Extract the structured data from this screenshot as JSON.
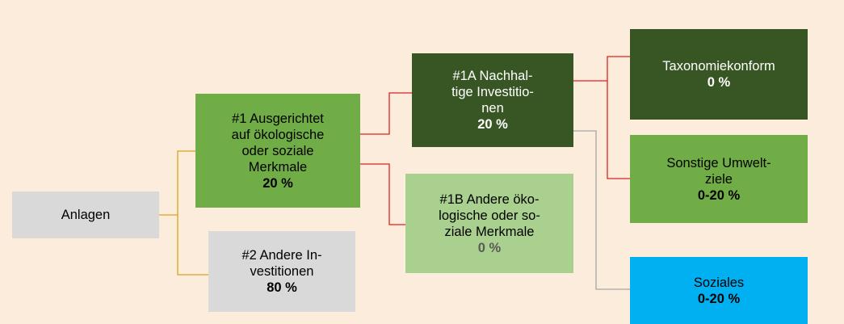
{
  "nodes": [
    {
      "lines": [
        "Anlagen"
      ],
      "value": null
    },
    {
      "lines": [
        "#1 Ausgerichtet",
        "auf ökologische",
        "oder soziale",
        "Merkmale"
      ],
      "value": "20 %"
    },
    {
      "lines": [
        "#2 Andere In-",
        "vestitionen"
      ],
      "value": "80 %"
    },
    {
      "lines": [
        "#1A Nachhal-",
        "tige Investitio-",
        "nen"
      ],
      "value": "20 %"
    },
    {
      "lines": [
        "#1B Andere öko-",
        "logische oder so-",
        "ziale Merkmale"
      ],
      "value": "0 %"
    },
    {
      "lines": [
        "Taxonomiekonform"
      ],
      "value": "0 %"
    },
    {
      "lines": [
        "Sonstige Umwelt-",
        "ziele"
      ],
      "value": "0-20 %"
    },
    {
      "lines": [
        "Soziales"
      ],
      "value": "0-20 %"
    }
  ]
}
